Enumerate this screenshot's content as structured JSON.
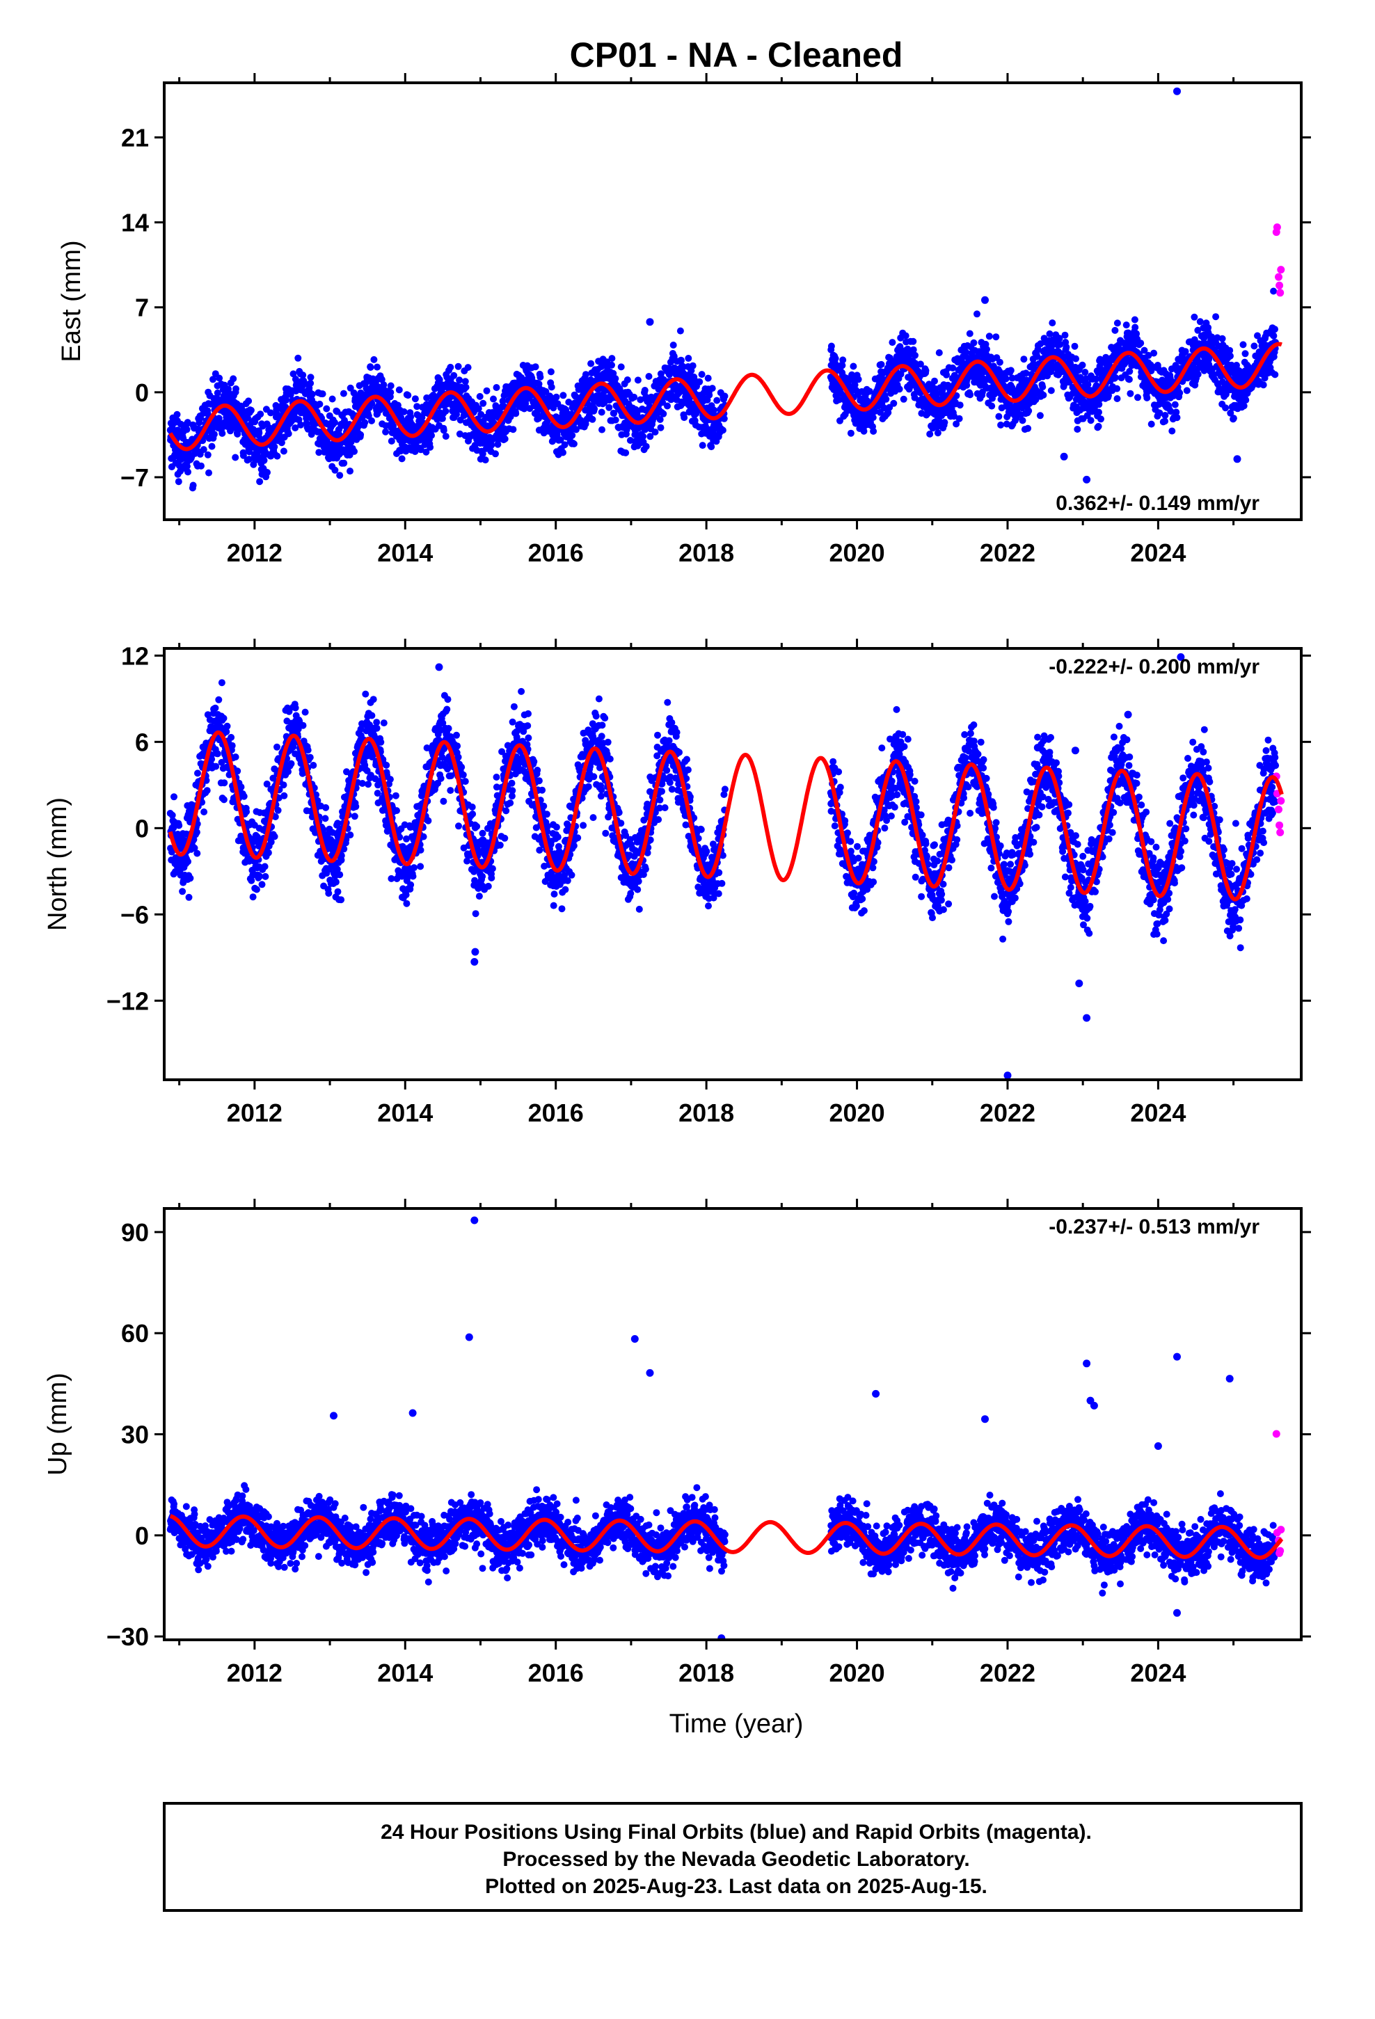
{
  "title": "CP01  - NA - Cleaned",
  "xlabel": "Time (year)",
  "footer": {
    "line1": "24 Hour Positions Using Final Orbits (blue) and Rapid Orbits (magenta).",
    "line2": "Processed by the Nevada Geodetic Laboratory.",
    "line3": "Plotted on 2025-Aug-23. Last data on 2025-Aug-15."
  },
  "colors": {
    "final_orbits": "#0000ff",
    "rapid_orbits": "#ff00ff",
    "model": "#ff0000",
    "frame": "#000000"
  },
  "chart_data": [
    {
      "type": "scatter",
      "name": "east",
      "ylabel": "East (mm)",
      "rate_text": "0.362+/- 0.149 mm/yr",
      "rate_position": "bottom-right",
      "xlim": [
        2010.8,
        2025.9
      ],
      "ylim": [
        -10.5,
        25.5
      ],
      "yticks": [
        -7,
        0,
        7,
        14,
        21
      ],
      "xticks": [
        2012,
        2014,
        2016,
        2018,
        2020,
        2022,
        2024
      ],
      "trend": {
        "slope_mm_per_yr": 0.362,
        "reference_epoch": 2018.5,
        "reference_value": -0.3
      },
      "seasonal": {
        "amplitude_mm": 1.7,
        "peak_phase_yr": 0.6
      },
      "noise_mm": 1.2,
      "gaps": [
        [
          2018.25,
          2019.65
        ]
      ],
      "outliers": [
        [
          2024.25,
          24.8
        ],
        [
          2022.75,
          -5.3
        ],
        [
          2023.05,
          -7.2
        ],
        [
          2025.05,
          -5.5
        ],
        [
          2021.7,
          7.6
        ],
        [
          2017.25,
          5.8
        ]
      ],
      "rapid_points": [
        [
          2025.57,
          13.2
        ],
        [
          2025.58,
          13.6
        ],
        [
          2025.6,
          9.5
        ],
        [
          2025.61,
          8.8
        ],
        [
          2025.62,
          8.2
        ],
        [
          2025.63,
          10.1
        ]
      ]
    },
    {
      "type": "scatter",
      "name": "north",
      "ylabel": "North (mm)",
      "rate_text": "-0.222+/- 0.200 mm/yr",
      "rate_position": "top-right",
      "xlim": [
        2010.8,
        2025.9
      ],
      "ylim": [
        -17.5,
        12.5
      ],
      "yticks": [
        -12,
        -6,
        0,
        6,
        12
      ],
      "xticks": [
        2012,
        2014,
        2016,
        2018,
        2020,
        2022,
        2024
      ],
      "trend": {
        "slope_mm_per_yr": -0.222,
        "reference_epoch": 2018.5,
        "reference_value": 0.8
      },
      "seasonal": {
        "amplitude_mm": 4.3,
        "peak_phase_yr": 0.52
      },
      "noise_mm": 1.3,
      "gaps": [
        [
          2018.25,
          2019.65
        ]
      ],
      "outliers": [
        [
          2014.92,
          -9.3
        ],
        [
          2014.93,
          -8.6
        ],
        [
          2022.0,
          -17.2
        ],
        [
          2023.05,
          -13.2
        ],
        [
          2022.95,
          -10.8
        ],
        [
          2024.3,
          11.9
        ],
        [
          2014.45,
          11.2
        ],
        [
          2023.6,
          7.9
        ],
        [
          2022.9,
          5.4
        ],
        [
          2022.4,
          5.6
        ]
      ],
      "rapid_points": [
        [
          2025.57,
          3.6
        ],
        [
          2025.58,
          2.4
        ],
        [
          2025.6,
          1.3
        ],
        [
          2025.61,
          0.2
        ],
        [
          2025.62,
          -0.3
        ],
        [
          2025.63,
          1.9
        ]
      ]
    },
    {
      "type": "scatter",
      "name": "up",
      "ylabel": "Up (mm)",
      "rate_text": "-0.237+/- 0.513 mm/yr",
      "rate_position": "top-right",
      "xlim": [
        2010.8,
        2025.9
      ],
      "ylim": [
        -31,
        97
      ],
      "yticks": [
        -30,
        0,
        30,
        60,
        90
      ],
      "xticks": [
        2012,
        2014,
        2016,
        2018,
        2020,
        2022,
        2024
      ],
      "trend": {
        "slope_mm_per_yr": -0.237,
        "reference_epoch": 2018.5,
        "reference_value": -0.5
      },
      "seasonal": {
        "amplitude_mm": 4.5,
        "peak_phase_yr": 0.85
      },
      "noise_mm": 3.5,
      "gaps": [
        [
          2018.25,
          2019.65
        ]
      ],
      "outliers": [
        [
          2014.92,
          93.5
        ],
        [
          2014.85,
          58.8
        ],
        [
          2017.05,
          58.3
        ],
        [
          2017.25,
          48.2
        ],
        [
          2014.1,
          36.3
        ],
        [
          2013.05,
          35.5
        ],
        [
          2020.25,
          42.0
        ],
        [
          2023.05,
          51.0
        ],
        [
          2023.1,
          40.0
        ],
        [
          2023.15,
          38.5
        ],
        [
          2024.25,
          53.0
        ],
        [
          2024.95,
          46.5
        ],
        [
          2021.7,
          34.5
        ],
        [
          2024.0,
          26.5
        ],
        [
          2018.2,
          -30.5
        ],
        [
          2024.25,
          -23.0
        ]
      ],
      "rapid_points": [
        [
          2025.57,
          30.1
        ],
        [
          2025.58,
          0.8
        ],
        [
          2025.6,
          -1.5
        ],
        [
          2025.61,
          -5.3
        ],
        [
          2025.62,
          -4.6
        ],
        [
          2025.63,
          1.7
        ]
      ]
    }
  ]
}
